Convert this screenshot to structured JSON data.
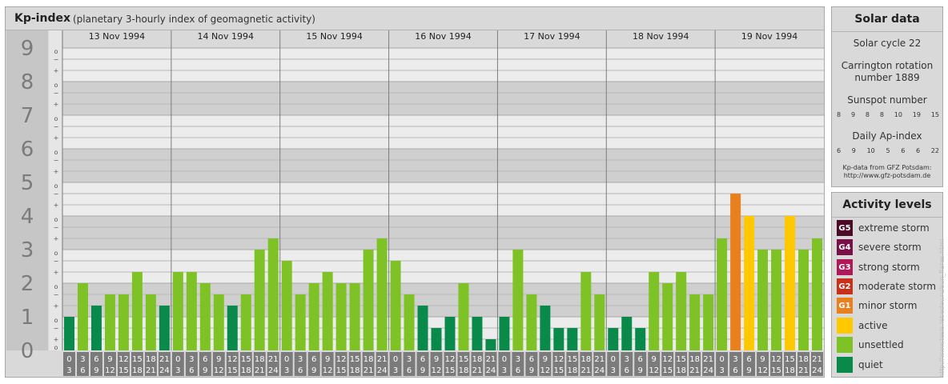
{
  "header": {
    "title": "Kp-index",
    "subtitle": "(planetary 3-hourly index of geomagnetic activity)"
  },
  "chart_data": {
    "type": "bar",
    "title": "Kp-index",
    "subtitle": "(planetary 3-hourly index of geomagnetic activity)",
    "ylim": [
      0,
      9
    ],
    "y_major_ticks": [
      "0",
      "1",
      "2",
      "3",
      "4",
      "5",
      "6",
      "7",
      "8",
      "9"
    ],
    "y_minor_ticks": [
      "o",
      "+",
      "−",
      "o"
    ],
    "days": [
      "13 Nov 1994",
      "14 Nov 1994",
      "15 Nov 1994",
      "16 Nov 1994",
      "17 Nov 1994",
      "18 Nov 1994",
      "19 Nov 1994"
    ],
    "interval_labels_top": [
      "0",
      "3",
      "6",
      "9",
      "12",
      "15",
      "18",
      "21"
    ],
    "interval_labels_bottom": [
      "3",
      "6",
      "9",
      "12",
      "15",
      "18",
      "21",
      "24"
    ],
    "values": [
      [
        1,
        2,
        1.333,
        1.667,
        1.667,
        2.333,
        1.667,
        1.333
      ],
      [
        2.333,
        2.333,
        2,
        1.667,
        1.333,
        1.667,
        3,
        3.333
      ],
      [
        2.667,
        1.667,
        2,
        2.333,
        2,
        2,
        3,
        3.333
      ],
      [
        2.667,
        1.667,
        1.333,
        0.667,
        1,
        2,
        1,
        0.333
      ],
      [
        1,
        3,
        1.667,
        1.333,
        0.667,
        0.667,
        2.333,
        1.667
      ],
      [
        0.667,
        1,
        0.667,
        2.333,
        2,
        2.333,
        1.667,
        1.667
      ],
      [
        3.333,
        4.667,
        4,
        3,
        3,
        4,
        3,
        3.333
      ]
    ],
    "levels": [
      {
        "name": "quiet",
        "max": 1.5,
        "color": "#0a8a4a"
      },
      {
        "name": "unsettled",
        "max": 3.5,
        "color": "#7ec225"
      },
      {
        "name": "active",
        "max": 4.5,
        "color": "#ffc800"
      },
      {
        "name": "minor storm",
        "max": 5.5,
        "color": "#e8801e"
      }
    ],
    "grid": true
  },
  "solar": {
    "header": "Solar data",
    "cycle": "Solar cycle 22",
    "carrington_line1": "Carrington rotation",
    "carrington_line2": "number 1889",
    "sunspot_label": "Sunspot number",
    "sunspot_values": [
      "8",
      "9",
      "8",
      "8",
      "10",
      "19",
      "15"
    ],
    "ap_label": "Daily Ap-index",
    "ap_values": [
      "6",
      "9",
      "10",
      "5",
      "6",
      "6",
      "22"
    ],
    "source_line1": "Kp-data from GFZ Potsdam:",
    "source_line2": "http://www.gfz-potsdam.de"
  },
  "legend": {
    "header": "Activity levels",
    "items": [
      {
        "code": "G5",
        "label": "extreme storm",
        "color": "#4a0a28"
      },
      {
        "code": "G4",
        "label": "severe storm",
        "color": "#7a1048"
      },
      {
        "code": "G3",
        "label": "strong storm",
        "color": "#b0185a"
      },
      {
        "code": "G2",
        "label": "moderate storm",
        "color": "#c8301a"
      },
      {
        "code": "G1",
        "label": "minor storm",
        "color": "#e8801e"
      },
      {
        "code": "",
        "label": "active",
        "color": "#ffc800"
      },
      {
        "code": "",
        "label": "unsettled",
        "color": "#7ec225"
      },
      {
        "code": "",
        "label": "quiet",
        "color": "#0a8a4a"
      }
    ]
  },
  "watermark": "http://www.tesis.lebedev.ru/sun_flares.html"
}
